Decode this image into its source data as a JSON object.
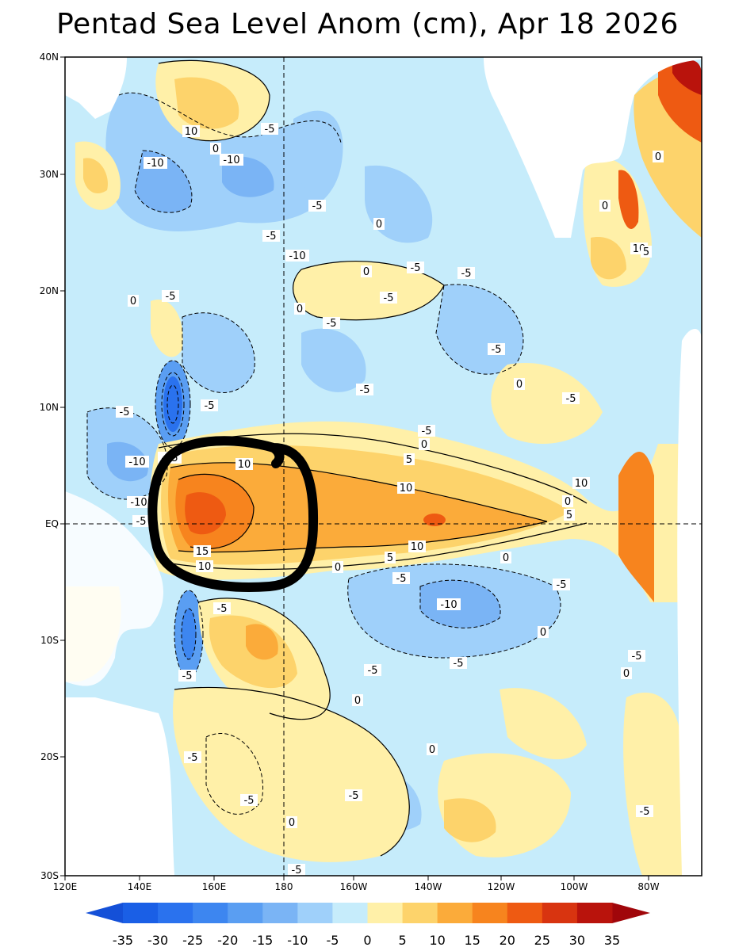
{
  "title": "Pentad Sea Level Anom (cm), Apr 18 2026",
  "map": {
    "lon_range": [
      120,
      185
    ],
    "lat_range": [
      -30,
      40
    ],
    "x_ticks": [
      "120E",
      "140E",
      "160E",
      "180",
      "160W",
      "140W",
      "120W",
      "100W",
      "80W"
    ],
    "y_ticks": [
      "40N",
      "30N",
      "20N",
      "10N",
      "EQ",
      "10S",
      "20S",
      "30S"
    ],
    "reference_lines": [
      "180",
      "EQ"
    ]
  },
  "contour_labels": [
    "10",
    "0",
    "-10",
    "-10",
    "-5",
    "-5",
    "-5",
    "-10",
    "0",
    "0",
    "-5",
    "-5",
    "0",
    "0",
    "-5",
    "-5",
    "-5",
    "-5",
    "-5",
    "-5",
    "-10",
    "-15",
    "-10",
    "-5",
    "10",
    "5",
    "10",
    "-5",
    "0",
    "-5",
    "10",
    "0",
    "15",
    "10",
    "0",
    "-5",
    "10",
    "5",
    "0",
    "-5",
    "-10",
    "-5",
    "0",
    "-5",
    "-5",
    "0",
    "-5",
    "0",
    "-5",
    "-5",
    "-5",
    "-5",
    "0",
    "-5",
    "10",
    "5",
    "0",
    "0",
    "0",
    "5",
    "-5",
    "0",
    "-5"
  ],
  "legend": {
    "labels": [
      "-35",
      "-30",
      "-25",
      "-20",
      "-15",
      "-10",
      "-5",
      "0",
      "5",
      "10",
      "15",
      "20",
      "25",
      "30",
      "35"
    ],
    "colors": [
      "#1a5fe6",
      "#2a72ee",
      "#3d86f0",
      "#5a9ef2",
      "#7ab4f5",
      "#9fd0fa",
      "#c6ecfb",
      "#fff0a8",
      "#fdd36b",
      "#fbab3a",
      "#f7841e",
      "#ee5a12",
      "#d83410",
      "#b9130c"
    ],
    "left_arrow_color": "#1450d8",
    "right_arrow_color": "#a0060a"
  },
  "annotation": {
    "type": "hand-drawn circle",
    "color": "#000000"
  }
}
